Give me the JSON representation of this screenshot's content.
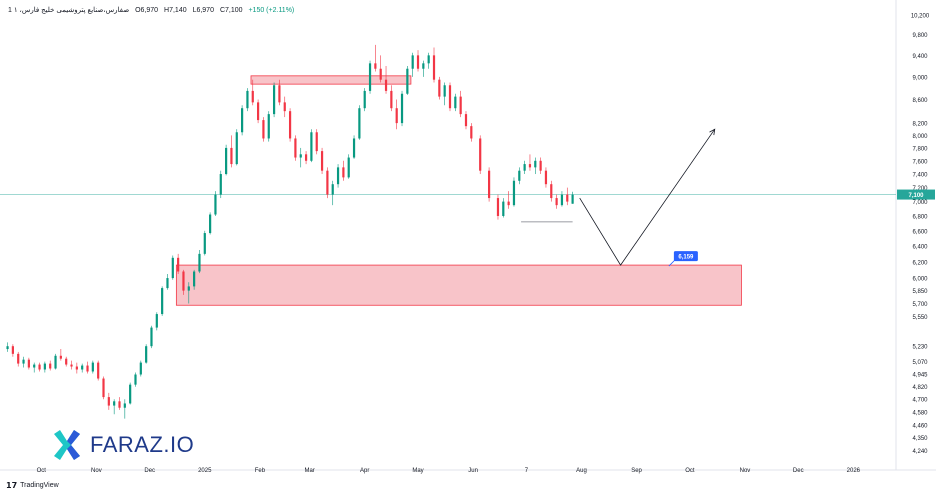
{
  "header": {
    "symbol": "1 صفارس،صنایع پتروشیمی خلیج فارس، ۱",
    "open": "O6,970",
    "high": "H7,140",
    "low": "L6,970",
    "close": "C7,100",
    "change": "+150 (+2.11%)"
  },
  "footer": {
    "brand": "TradingView"
  },
  "logo": {
    "text": "FARAZ.IO"
  },
  "colors": {
    "up": "#089981",
    "down": "#f23645",
    "zone_fill": "#f8c4c9",
    "zone_stroke": "#f23645",
    "price_line": "#26a69a",
    "label_bg": "#2962ff"
  },
  "chart_data": {
    "type": "candlestick",
    "scale": "log",
    "ylim": [
      4200,
      10300
    ],
    "yticks": [
      "10,200",
      "9,800",
      "9,400",
      "9,000",
      "8,600",
      "8,200",
      "8,000",
      "7,800",
      "7,600",
      "7,400",
      "7,200",
      "7,000",
      "6,800",
      "6,600",
      "6,400",
      "6,200",
      "6,000",
      "5,850",
      "5,700",
      "5,550",
      "5,230",
      "5,070",
      "4,945",
      "4,820",
      "4,700",
      "4,580",
      "4,460",
      "4,350",
      "4,240"
    ],
    "xticks": [
      {
        "label": "Oct",
        "date": "2024-10-01"
      },
      {
        "label": "Nov",
        "date": "2024-11-01"
      },
      {
        "label": "Dec",
        "date": "2024-12-01"
      },
      {
        "label": "2025",
        "date": "2025-01-01"
      },
      {
        "label": "Feb",
        "date": "2025-02-01"
      },
      {
        "label": "Mar",
        "date": "2025-03-01"
      },
      {
        "label": "Apr",
        "date": "2025-04-01"
      },
      {
        "label": "May",
        "date": "2025-05-01"
      },
      {
        "label": "Jun",
        "date": "2025-06-01"
      },
      {
        "label": "7",
        "date": "2025-07-01"
      },
      {
        "label": "Aug",
        "date": "2025-08-01"
      },
      {
        "label": "Sep",
        "date": "2025-09-01"
      },
      {
        "label": "Oct",
        "date": "2025-10-01"
      },
      {
        "label": "Nov",
        "date": "2025-11-01"
      },
      {
        "label": "Dec",
        "date": "2025-12-01"
      },
      {
        "label": "2026",
        "date": "2026-01-01"
      }
    ],
    "xlim": [
      "2024-09-10",
      "2026-01-25"
    ],
    "last_price": "7,100",
    "target_label": "6,159",
    "candles": [
      [
        "2024-09-12",
        5200,
        5270,
        5170,
        5230
      ],
      [
        "2024-09-15",
        5230,
        5250,
        5120,
        5150
      ],
      [
        "2024-09-18",
        5150,
        5170,
        5020,
        5050
      ],
      [
        "2024-09-21",
        5050,
        5120,
        5010,
        5090
      ],
      [
        "2024-09-24",
        5090,
        5110,
        4990,
        5010
      ],
      [
        "2024-09-27",
        5010,
        5060,
        4960,
        5040
      ],
      [
        "2024-09-30",
        5040,
        5060,
        4970,
        4990
      ],
      [
        "2024-10-03",
        4990,
        5070,
        4960,
        5050
      ],
      [
        "2024-10-06",
        5050,
        5080,
        4980,
        5000
      ],
      [
        "2024-10-09",
        5000,
        5150,
        4990,
        5130
      ],
      [
        "2024-10-12",
        5130,
        5200,
        5080,
        5100
      ],
      [
        "2024-10-15",
        5100,
        5120,
        5020,
        5040
      ],
      [
        "2024-10-18",
        5040,
        5080,
        4990,
        5020
      ],
      [
        "2024-10-21",
        5020,
        5060,
        4950,
        4990
      ],
      [
        "2024-10-24",
        4990,
        5050,
        4960,
        5030
      ],
      [
        "2024-10-27",
        5030,
        5070,
        4950,
        4970
      ],
      [
        "2024-10-30",
        4970,
        5080,
        4950,
        5060
      ],
      [
        "2024-11-02",
        5060,
        5080,
        4880,
        4900
      ],
      [
        "2024-11-05",
        4900,
        4920,
        4700,
        4720
      ],
      [
        "2024-11-08",
        4720,
        4760,
        4600,
        4640
      ],
      [
        "2024-11-11",
        4640,
        4700,
        4560,
        4680
      ],
      [
        "2024-11-14",
        4680,
        4720,
        4600,
        4620
      ],
      [
        "2024-11-17",
        4620,
        4700,
        4520,
        4660
      ],
      [
        "2024-11-20",
        4660,
        4860,
        4650,
        4840
      ],
      [
        "2024-11-23",
        4840,
        4960,
        4820,
        4940
      ],
      [
        "2024-11-26",
        4940,
        5080,
        4920,
        5060
      ],
      [
        "2024-11-29",
        5060,
        5250,
        5050,
        5230
      ],
      [
        "2024-12-02",
        5230,
        5450,
        5210,
        5430
      ],
      [
        "2024-12-05",
        5430,
        5600,
        5400,
        5580
      ],
      [
        "2024-12-08",
        5580,
        5900,
        5560,
        5880
      ],
      [
        "2024-12-11",
        5880,
        6050,
        5860,
        6000
      ],
      [
        "2024-12-14",
        6000,
        6280,
        5980,
        6250
      ],
      [
        "2024-12-17",
        6250,
        6300,
        6050,
        6080
      ],
      [
        "2024-12-20",
        6080,
        6100,
        5800,
        5850
      ],
      [
        "2024-12-23",
        5850,
        5950,
        5700,
        5900
      ],
      [
        "2024-12-26",
        5900,
        6100,
        5860,
        6080
      ],
      [
        "2024-12-29",
        6080,
        6350,
        6060,
        6300
      ],
      [
        "2025-01-01",
        6300,
        6600,
        6280,
        6570
      ],
      [
        "2025-01-04",
        6570,
        6850,
        6550,
        6820
      ],
      [
        "2025-01-07",
        6820,
        7150,
        6800,
        7100
      ],
      [
        "2025-01-10",
        7100,
        7450,
        7050,
        7400
      ],
      [
        "2025-01-13",
        7400,
        7850,
        7380,
        7800
      ],
      [
        "2025-01-16",
        7800,
        8000,
        7500,
        7550
      ],
      [
        "2025-01-19",
        7550,
        8100,
        7530,
        8050
      ],
      [
        "2025-01-22",
        8050,
        8500,
        8000,
        8450
      ],
      [
        "2025-01-25",
        8450,
        8800,
        8400,
        8750
      ],
      [
        "2025-01-28",
        8750,
        8950,
        8500,
        8550
      ],
      [
        "2025-01-31",
        8550,
        8600,
        8200,
        8250
      ],
      [
        "2025-02-03",
        8250,
        8300,
        7900,
        7950
      ],
      [
        "2025-02-06",
        7950,
        8400,
        7900,
        8350
      ],
      [
        "2025-02-09",
        8350,
        8900,
        8300,
        8850
      ],
      [
        "2025-02-12",
        8850,
        8950,
        8500,
        8550
      ],
      [
        "2025-02-15",
        8550,
        8650,
        8300,
        8400
      ],
      [
        "2025-02-18",
        8400,
        8450,
        7900,
        7950
      ],
      [
        "2025-02-21",
        7950,
        8000,
        7600,
        7650
      ],
      [
        "2025-02-24",
        7650,
        7800,
        7500,
        7700
      ],
      [
        "2025-02-27",
        7700,
        7750,
        7550,
        7600
      ],
      [
        "2025-03-02",
        7600,
        8100,
        7580,
        8050
      ],
      [
        "2025-03-05",
        8050,
        8100,
        7700,
        7750
      ],
      [
        "2025-03-08",
        7750,
        7800,
        7400,
        7450
      ],
      [
        "2025-03-11",
        7450,
        7500,
        7050,
        7100
      ],
      [
        "2025-03-14",
        7100,
        7300,
        6950,
        7250
      ],
      [
        "2025-03-17",
        7250,
        7550,
        7200,
        7500
      ],
      [
        "2025-03-20",
        7500,
        7600,
        7300,
        7350
      ],
      [
        "2025-03-23",
        7350,
        7700,
        7330,
        7650
      ],
      [
        "2025-03-26",
        7650,
        8000,
        7630,
        7950
      ],
      [
        "2025-03-29",
        7950,
        8500,
        7930,
        8450
      ],
      [
        "2025-04-01",
        8450,
        8800,
        8400,
        8750
      ],
      [
        "2025-04-04",
        8750,
        9300,
        8700,
        9250
      ],
      [
        "2025-04-07",
        9250,
        9600,
        9100,
        9150
      ],
      [
        "2025-04-10",
        9150,
        9400,
        8900,
        8950
      ],
      [
        "2025-04-13",
        8950,
        9200,
        8700,
        8750
      ],
      [
        "2025-04-16",
        8750,
        8850,
        8400,
        8450
      ],
      [
        "2025-04-19",
        8450,
        8600,
        8100,
        8200
      ],
      [
        "2025-04-22",
        8200,
        8750,
        8150,
        8700
      ],
      [
        "2025-04-25",
        8700,
        9200,
        8680,
        9150
      ],
      [
        "2025-04-28",
        9150,
        9450,
        9000,
        9400
      ],
      [
        "2025-05-01",
        9400,
        9500,
        9100,
        9150
      ],
      [
        "2025-05-04",
        9150,
        9300,
        9000,
        9250
      ],
      [
        "2025-05-07",
        9250,
        9450,
        9150,
        9400
      ],
      [
        "2025-05-10",
        9400,
        9550,
        8900,
        8950
      ],
      [
        "2025-05-13",
        8950,
        9000,
        8600,
        8650
      ],
      [
        "2025-05-16",
        8650,
        8900,
        8500,
        8850
      ],
      [
        "2025-05-19",
        8850,
        8900,
        8400,
        8450
      ],
      [
        "2025-05-22",
        8450,
        8700,
        8400,
        8650
      ],
      [
        "2025-05-25",
        8650,
        8750,
        8300,
        8350
      ],
      [
        "2025-05-28",
        8350,
        8400,
        8100,
        8150
      ],
      [
        "2025-05-31",
        8150,
        8200,
        7900,
        7950
      ],
      [
        "2025-06-05",
        7950,
        8000,
        7400,
        7450
      ],
      [
        "2025-06-10",
        7450,
        7500,
        7000,
        7050
      ],
      [
        "2025-06-15",
        7050,
        7100,
        6750,
        6800
      ],
      [
        "2025-06-18",
        6800,
        7050,
        6780,
        7000
      ],
      [
        "2025-06-21",
        7000,
        7150,
        6900,
        6950
      ],
      [
        "2025-06-24",
        6950,
        7350,
        6930,
        7300
      ],
      [
        "2025-06-27",
        7300,
        7500,
        7250,
        7450
      ],
      [
        "2025-06-30",
        7450,
        7600,
        7400,
        7550
      ],
      [
        "2025-07-03",
        7550,
        7700,
        7450,
        7500
      ],
      [
        "2025-07-06",
        7500,
        7650,
        7400,
        7600
      ],
      [
        "2025-07-09",
        7600,
        7650,
        7400,
        7450
      ],
      [
        "2025-07-12",
        7450,
        7500,
        7200,
        7250
      ],
      [
        "2025-07-15",
        7250,
        7300,
        7000,
        7050
      ],
      [
        "2025-07-18",
        7050,
        7100,
        6900,
        6950
      ],
      [
        "2025-07-21",
        6950,
        7150,
        6930,
        7100
      ],
      [
        "2025-07-24",
        7100,
        7200,
        6950,
        7000
      ],
      [
        "2025-07-27",
        6970,
        7140,
        6970,
        7100
      ]
    ],
    "annotations": {
      "upper_zone": {
        "x0": "2025-01-27",
        "x1": "2025-04-27",
        "y0": 8870,
        "y1": 9020
      },
      "lower_zone": {
        "x0": "2024-12-16",
        "x1": "2025-10-30",
        "y0": 5680,
        "y1": 6159
      },
      "support_line": {
        "x0": "2025-06-28",
        "x1": "2025-07-27",
        "y": 6720
      },
      "path": [
        [
          "2025-07-31",
          7050
        ],
        [
          "2025-08-23",
          6159
        ],
        [
          "2025-10-15",
          8100
        ]
      ]
    }
  }
}
